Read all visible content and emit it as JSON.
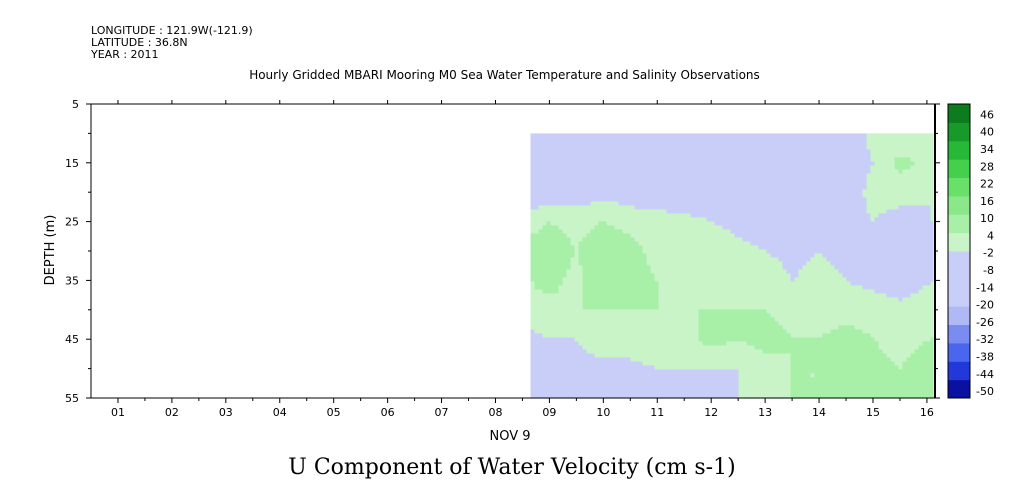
{
  "header": {
    "longitude": "LONGITUDE : 121.9W(-121.9)",
    "latitude": "LATITUDE : 36.8N",
    "year": "YEAR : 2011"
  },
  "chart_data": {
    "type": "heatmap",
    "title": "Hourly Gridded MBARI Mooring M0 Sea Water Temperature and Salinity Observations",
    "bottom_title": "U Component of Water Velocity (cm s-1)",
    "ylabel": "DEPTH (m)",
    "xlabel": "NOV  9",
    "x_ticks": [
      "01",
      "02",
      "03",
      "04",
      "05",
      "06",
      "07",
      "08",
      "09",
      "10",
      "11",
      "12",
      "13",
      "14",
      "15",
      "16"
    ],
    "y_ticks": [
      "5",
      "15",
      "25",
      "35",
      "45",
      "55"
    ],
    "ylim": [
      5,
      55
    ],
    "xlim": [
      0.5,
      16.15
    ],
    "data_start_day": 8.65,
    "top_depth": 10,
    "depths": [
      10,
      15,
      20,
      25,
      30,
      35,
      40,
      45,
      50,
      55
    ],
    "days": [
      8.65,
      9,
      9.5,
      10,
      10.5,
      11,
      11.5,
      12,
      12.5,
      13,
      13.5,
      14,
      14.5,
      15,
      15.5,
      16.1
    ],
    "grid": [
      [
        -6,
        -6,
        -10,
        -12,
        -10,
        -14,
        -12,
        -10,
        -12,
        -10,
        -8,
        -12,
        -8,
        0,
        -2,
        2
      ],
      [
        -8,
        -8,
        -10,
        -10,
        -8,
        -10,
        -10,
        -8,
        -10,
        -10,
        -8,
        -8,
        -6,
        -2,
        6,
        2
      ],
      [
        -8,
        -6,
        -6,
        -4,
        -6,
        -8,
        -8,
        -8,
        -8,
        -8,
        -8,
        -6,
        -6,
        0,
        0,
        -2
      ],
      [
        2,
        4,
        2,
        4,
        2,
        2,
        0,
        -2,
        -4,
        -6,
        -6,
        -4,
        -4,
        -2,
        -4,
        -2
      ],
      [
        6,
        8,
        4,
        8,
        6,
        2,
        2,
        2,
        0,
        -2,
        -4,
        -2,
        -4,
        -6,
        -2,
        -4
      ],
      [
        4,
        6,
        2,
        10,
        6,
        4,
        2,
        2,
        2,
        2,
        -2,
        0,
        -2,
        -4,
        -6,
        -2
      ],
      [
        2,
        2,
        4,
        4,
        4,
        4,
        4,
        4,
        4,
        4,
        2,
        2,
        2,
        2,
        0,
        2
      ],
      [
        -4,
        -2,
        -2,
        2,
        2,
        4,
        2,
        6,
        4,
        6,
        4,
        4,
        6,
        4,
        2,
        4
      ],
      [
        -6,
        -6,
        -4,
        -4,
        -4,
        -2,
        -2,
        -2,
        -2,
        2,
        4,
        4,
        6,
        6,
        4,
        8
      ],
      [
        -8,
        -8,
        -8,
        -6,
        -6,
        -4,
        -4,
        -4,
        -2,
        0,
        4,
        4,
        6,
        4,
        4,
        8
      ]
    ],
    "colorbar": {
      "levels": [
        -50,
        -44,
        -38,
        -32,
        -26,
        -20,
        -14,
        -8,
        -2,
        4,
        10,
        16,
        22,
        28,
        34,
        40,
        46
      ],
      "labels": [
        "46",
        "40",
        "34",
        "28",
        "22",
        "16",
        "10",
        "4",
        "-2",
        "-8",
        "-14",
        "-20",
        "-26",
        "-32",
        "-38",
        "-44",
        "-50"
      ],
      "colors": [
        "#000080",
        "#0a10a0",
        "#1422c0",
        "#2238d8",
        "#3550e6",
        "#4a66ee",
        "#6079f0",
        "#7a8cf2",
        "#96a2f4",
        "#b0b8f6",
        "#c8cef8",
        "#c8f4c8",
        "#a8f0a8",
        "#8ae88a",
        "#68e06a",
        "#44d04c",
        "#28b838",
        "#179a2a",
        "#0c7c1e",
        "#065e14",
        "#024a0c"
      ]
    }
  }
}
